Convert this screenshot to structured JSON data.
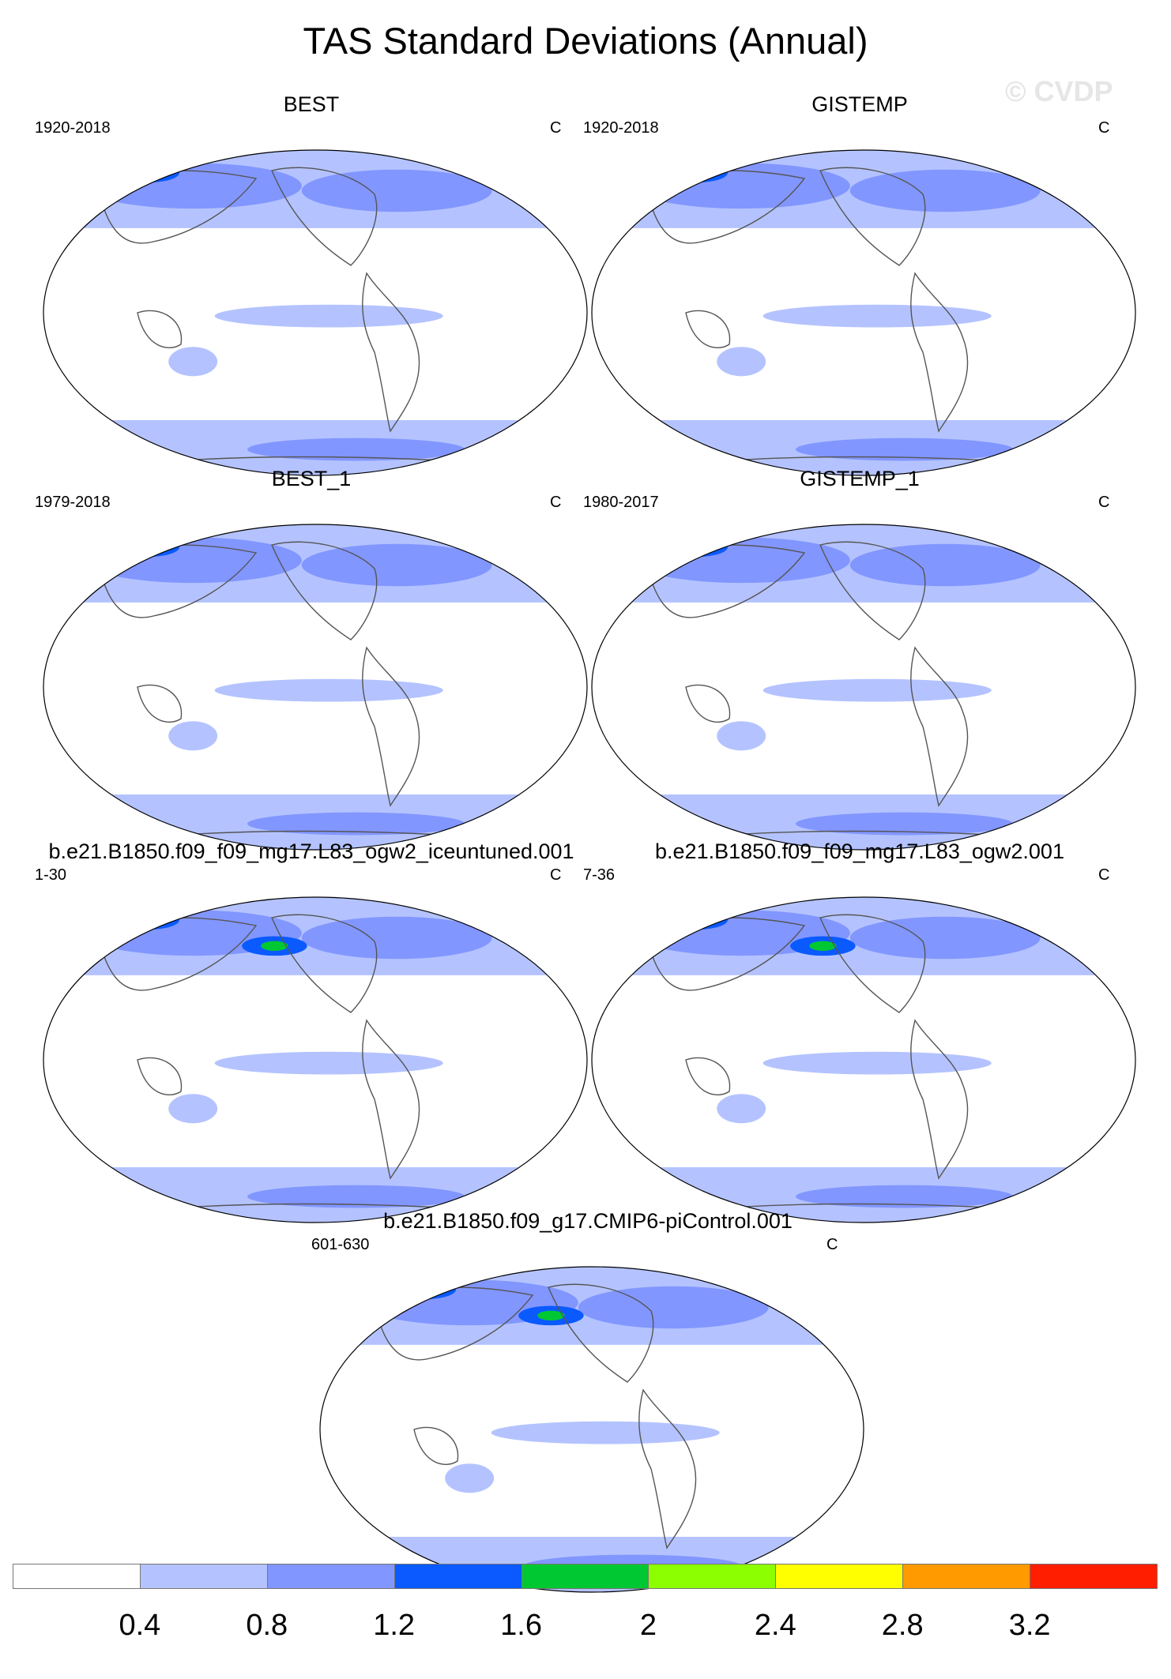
{
  "title": "TAS Standard Deviations (Annual)",
  "watermark": "© CVDP",
  "panels": [
    {
      "title": "BEST",
      "period": "1920-2018",
      "units": "C"
    },
    {
      "title": "GISTEMP",
      "period": "1920-2018",
      "units": "C"
    },
    {
      "title": "BEST_1",
      "period": "1979-2018",
      "units": "C"
    },
    {
      "title": "GISTEMP_1",
      "period": "1980-2017",
      "units": "C"
    },
    {
      "title": "b.e21.B1850.f09_f09_mg17.L83_ogw2_iceuntuned.001",
      "period": "1-30",
      "units": "C"
    },
    {
      "title": "b.e21.B1850.f09_f09_mg17.L83_ogw2.001",
      "period": "7-36",
      "units": "C"
    },
    {
      "title": "b.e21.B1850.f09_g17.CMIP6-piControl.001",
      "period": "601-630",
      "units": "C"
    }
  ],
  "colorbar": {
    "labels": [
      "0.4",
      "0.8",
      "1.2",
      "1.6",
      "2",
      "2.4",
      "2.8",
      "3.2"
    ],
    "colors": [
      "#ffffff",
      "#b4c3ff",
      "#8296ff",
      "#0a5aff",
      "#00c832",
      "#8cff00",
      "#ffff00",
      "#ff9b00",
      "#ff1e00"
    ]
  }
}
